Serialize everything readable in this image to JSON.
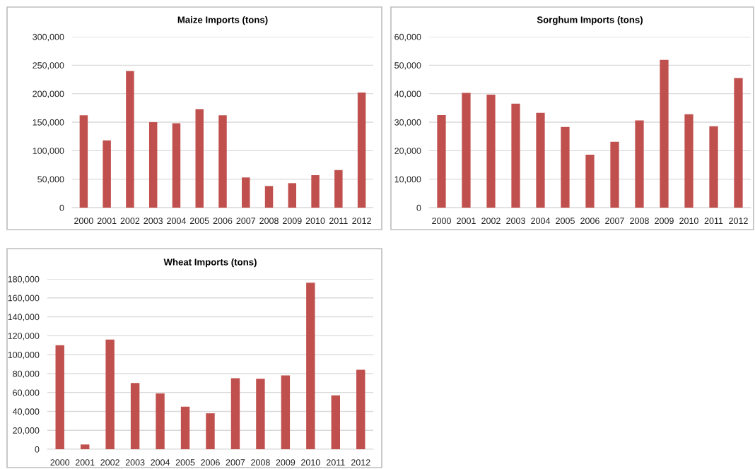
{
  "chart_data": [
    {
      "type": "bar",
      "title": "Maize Imports (tons)",
      "categories": [
        "2000",
        "2001",
        "2002",
        "2003",
        "2004",
        "2005",
        "2006",
        "2007",
        "2008",
        "2009",
        "2010",
        "2011",
        "2012"
      ],
      "values": [
        162000,
        118000,
        240000,
        150000,
        148000,
        173000,
        162000,
        53000,
        38000,
        43000,
        57000,
        66000,
        202000
      ],
      "color": "#c0504d",
      "ylim": [
        0,
        300000
      ],
      "yticks": [
        {
          "value": 0,
          "label": "0"
        },
        {
          "value": 50000,
          "label": "50,000"
        },
        {
          "value": 100000,
          "label": "100,000"
        },
        {
          "value": 150000,
          "label": "150,000"
        },
        {
          "value": 200000,
          "label": "200,000"
        },
        {
          "value": 250000,
          "label": "250,000"
        },
        {
          "value": 300000,
          "label": "300,000"
        }
      ],
      "grid": "y"
    },
    {
      "type": "bar",
      "title": "Sorghum Imports (tons)",
      "categories": [
        "2000",
        "2001",
        "2002",
        "2003",
        "2004",
        "2005",
        "2006",
        "2007",
        "2008",
        "2009",
        "2010",
        "2011",
        "2012"
      ],
      "values": [
        32500,
        40300,
        39700,
        36500,
        33300,
        28300,
        18600,
        23100,
        30600,
        51900,
        32800,
        28600,
        45500
      ],
      "color": "#c0504d",
      "ylim": [
        0,
        60000
      ],
      "yticks": [
        {
          "value": 0,
          "label": "0"
        },
        {
          "value": 10000,
          "label": "10,000"
        },
        {
          "value": 20000,
          "label": "20,000"
        },
        {
          "value": 30000,
          "label": "30,000"
        },
        {
          "value": 40000,
          "label": "40,000"
        },
        {
          "value": 50000,
          "label": "50,000"
        },
        {
          "value": 60000,
          "label": "60,000"
        }
      ],
      "grid": "y"
    },
    {
      "type": "bar",
      "title": "Wheat Imports (tons)",
      "categories": [
        "2000",
        "2001",
        "2002",
        "2003",
        "2004",
        "2005",
        "2006",
        "2007",
        "2008",
        "2009",
        "2010",
        "2011",
        "2012"
      ],
      "values": [
        110000,
        5000,
        116000,
        70000,
        59000,
        45000,
        38000,
        75000,
        74500,
        78000,
        176000,
        57000,
        84000
      ],
      "color": "#c0504d",
      "ylim": [
        0,
        180000
      ],
      "yticks": [
        {
          "value": 0,
          "label": "0"
        },
        {
          "value": 20000,
          "label": "20,000"
        },
        {
          "value": 40000,
          "label": "40,000"
        },
        {
          "value": 60000,
          "label": "60,000"
        },
        {
          "value": 80000,
          "label": "80,000"
        },
        {
          "value": 100000,
          "label": "100,000"
        },
        {
          "value": 120000,
          "label": "120,000"
        },
        {
          "value": 140000,
          "label": "140,000"
        },
        {
          "value": 160000,
          "label": "160,000"
        },
        {
          "value": 180000,
          "label": "180,000"
        }
      ],
      "grid": "y"
    }
  ]
}
